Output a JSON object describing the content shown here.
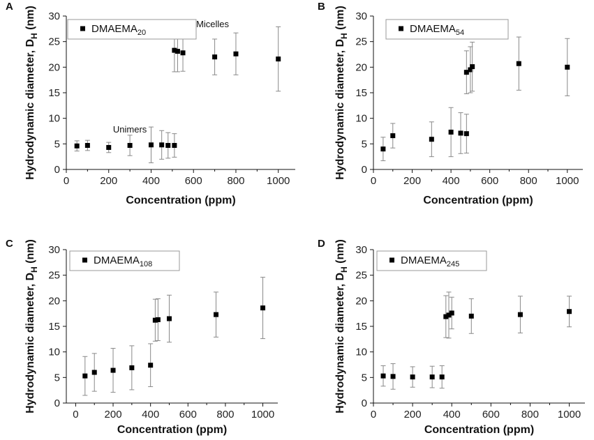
{
  "figure": {
    "chart_data": [
      {
        "panel_label": "A",
        "type": "scatter",
        "xlabel": "Concentration (ppm)",
        "ylabel_main": "Hydrodynamic diameter, D",
        "ylabel_sub": "H",
        "ylabel_unit": " (nm)",
        "xlim": [
          0,
          1080
        ],
        "ylim": [
          0,
          30
        ],
        "xticks": [
          0,
          200,
          400,
          600,
          800,
          1000
        ],
        "yticks": [
          0,
          5,
          10,
          15,
          20,
          25,
          30
        ],
        "legend_position": "top-left",
        "series": [
          {
            "name_main": "DMAEMA",
            "name_sub": "20",
            "points": [
              {
                "x": 50,
                "y": 4.6,
                "err": 1.0
              },
              {
                "x": 100,
                "y": 4.7,
                "err": 1.0
              },
              {
                "x": 200,
                "y": 4.3,
                "err": 1.0
              },
              {
                "x": 300,
                "y": 4.7,
                "err": 2.0
              },
              {
                "x": 400,
                "y": 4.8,
                "err": 3.5
              },
              {
                "x": 450,
                "y": 4.8,
                "err": 2.8
              },
              {
                "x": 480,
                "y": 4.7,
                "err": 2.5
              },
              {
                "x": 510,
                "y": 4.7,
                "err": 2.3
              },
              {
                "x": 510,
                "y": 23.3,
                "err": 4.2
              },
              {
                "x": 525,
                "y": 23.1,
                "err": 4.0
              },
              {
                "x": 550,
                "y": 22.8,
                "err": 3.6
              },
              {
                "x": 700,
                "y": 22.0,
                "err": 3.5
              },
              {
                "x": 800,
                "y": 22.6,
                "err": 4.1
              },
              {
                "x": 1000,
                "y": 21.6,
                "err": 6.3
              }
            ]
          }
        ],
        "annotations": [
          {
            "text": "Micelles",
            "x": 690,
            "y": 27.8
          },
          {
            "text": "Unimers",
            "x": 300,
            "y": 7.2
          }
        ]
      },
      {
        "panel_label": "B",
        "type": "scatter",
        "xlabel": "Concentration (ppm)",
        "ylabel_main": "Hydrodynamic diameter, D",
        "ylabel_sub": "H",
        "ylabel_unit": " (nm)",
        "xlim": [
          0,
          1080
        ],
        "ylim": [
          0,
          30
        ],
        "xticks": [
          0,
          200,
          400,
          600,
          800,
          1000
        ],
        "yticks": [
          0,
          5,
          10,
          15,
          20,
          25,
          30
        ],
        "legend_position": "top-left",
        "series": [
          {
            "name_main": "DMAEMA",
            "name_sub": "54",
            "points": [
              {
                "x": 50,
                "y": 4.0,
                "err": 2.3
              },
              {
                "x": 100,
                "y": 6.6,
                "err": 2.4
              },
              {
                "x": 300,
                "y": 5.9,
                "err": 3.4
              },
              {
                "x": 400,
                "y": 7.3,
                "err": 4.8
              },
              {
                "x": 450,
                "y": 7.1,
                "err": 4.0
              },
              {
                "x": 480,
                "y": 7.0,
                "err": 3.8
              },
              {
                "x": 480,
                "y": 19.0,
                "err": 4.2
              },
              {
                "x": 500,
                "y": 19.5,
                "err": 4.5
              },
              {
                "x": 510,
                "y": 20.1,
                "err": 4.8
              },
              {
                "x": 750,
                "y": 20.7,
                "err": 5.2
              },
              {
                "x": 1000,
                "y": 20.0,
                "err": 5.6
              }
            ]
          }
        ],
        "annotations": []
      },
      {
        "panel_label": "C",
        "type": "scatter",
        "xlabel": "Concentration (ppm)",
        "ylabel_main": "Hydrodynamic diameter, D",
        "ylabel_sub": "H",
        "ylabel_unit": " (nm)",
        "xlim": [
          -50,
          1080
        ],
        "ylim": [
          0,
          30
        ],
        "xticks": [
          0,
          200,
          400,
          600,
          800,
          1000
        ],
        "yticks": [
          0,
          5,
          10,
          15,
          20,
          25,
          30
        ],
        "legend_position": "top-left",
        "series": [
          {
            "name_main": "DMAEMA",
            "name_sub": "108",
            "points": [
              {
                "x": 50,
                "y": 5.3,
                "err": 3.8
              },
              {
                "x": 100,
                "y": 6.0,
                "err": 3.7
              },
              {
                "x": 200,
                "y": 6.4,
                "err": 4.3
              },
              {
                "x": 300,
                "y": 6.9,
                "err": 4.3
              },
              {
                "x": 400,
                "y": 7.4,
                "err": 4.2
              },
              {
                "x": 425,
                "y": 16.2,
                "err": 4.1
              },
              {
                "x": 440,
                "y": 16.3,
                "err": 4.1
              },
              {
                "x": 500,
                "y": 16.5,
                "err": 4.6
              },
              {
                "x": 750,
                "y": 17.3,
                "err": 4.4
              },
              {
                "x": 1000,
                "y": 18.6,
                "err": 6.0
              }
            ]
          }
        ],
        "annotations": []
      },
      {
        "panel_label": "D",
        "type": "scatter",
        "xlabel": "Concentration (ppm)",
        "ylabel_main": "Hydrodynamic diameter, D",
        "ylabel_sub": "H",
        "ylabel_unit": " (nm)",
        "xlim": [
          0,
          1080
        ],
        "ylim": [
          0,
          30
        ],
        "xticks": [
          0,
          200,
          400,
          600,
          800,
          1000
        ],
        "yticks": [
          0,
          5,
          10,
          15,
          20,
          25,
          30
        ],
        "legend_position": "top-left",
        "series": [
          {
            "name_main": "DMAEMA",
            "name_sub": "245",
            "points": [
              {
                "x": 50,
                "y": 5.3,
                "err": 2.0
              },
              {
                "x": 100,
                "y": 5.2,
                "err": 2.5
              },
              {
                "x": 200,
                "y": 5.1,
                "err": 2.0
              },
              {
                "x": 300,
                "y": 5.1,
                "err": 2.1
              },
              {
                "x": 350,
                "y": 5.1,
                "err": 2.2
              },
              {
                "x": 370,
                "y": 16.9,
                "err": 4.1
              },
              {
                "x": 385,
                "y": 17.2,
                "err": 4.5
              },
              {
                "x": 400,
                "y": 17.6,
                "err": 3.1
              },
              {
                "x": 500,
                "y": 17.0,
                "err": 3.4
              },
              {
                "x": 750,
                "y": 17.3,
                "err": 3.6
              },
              {
                "x": 1000,
                "y": 17.9,
                "err": 3.0
              }
            ]
          }
        ],
        "annotations": []
      }
    ]
  }
}
